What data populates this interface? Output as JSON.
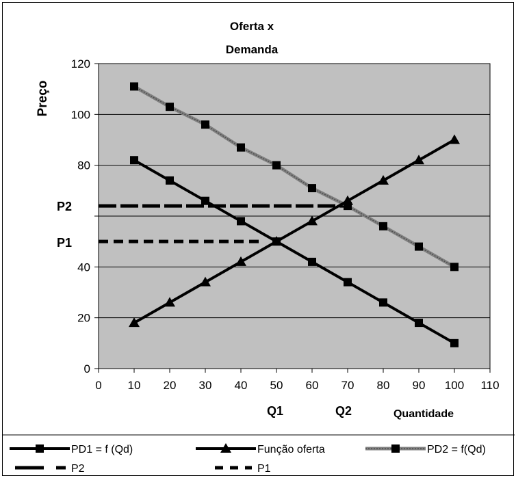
{
  "chart_data": {
    "type": "line",
    "title_lines": [
      "Oferta x",
      "Demanda"
    ],
    "xlabel": "Quantidade",
    "ylabel": "Preço",
    "xlim": [
      0,
      110
    ],
    "ylim": [
      0,
      120
    ],
    "x_ticks": [
      "0",
      "10",
      "20",
      "30",
      "40",
      "50",
      "60",
      "70",
      "80",
      "90",
      "100",
      "110"
    ],
    "y_ticks": [
      {
        "value": 0,
        "label": "0"
      },
      {
        "value": 20,
        "label": "20"
      },
      {
        "value": 40,
        "label": "40"
      },
      {
        "value": 80,
        "label": "80"
      },
      {
        "value": 100,
        "label": "100"
      },
      {
        "value": 120,
        "label": "120"
      }
    ],
    "gridlines_y": [
      0,
      20,
      40,
      60,
      80,
      100,
      120
    ],
    "plot_background": "#c0c0c0",
    "series": [
      {
        "name": "PD1 = f (Qd)",
        "marker": "square",
        "style": "solid",
        "color": "#000000",
        "x": [
          10,
          20,
          30,
          40,
          50,
          60,
          70,
          80,
          90,
          100
        ],
        "y": [
          82,
          74,
          66,
          58,
          50,
          42,
          34,
          26,
          18,
          10
        ]
      },
      {
        "name": "Função oferta",
        "marker": "triangle",
        "style": "solid",
        "color": "#000000",
        "x": [
          10,
          20,
          30,
          40,
          50,
          60,
          70,
          80,
          90,
          100
        ],
        "y": [
          18,
          26,
          34,
          42,
          50,
          58,
          66,
          74,
          82,
          90
        ]
      },
      {
        "name": "PD2 = f(Qd)",
        "marker": "square",
        "style": "solid-gray",
        "color": "#808080",
        "x": [
          10,
          20,
          30,
          40,
          50,
          60,
          70,
          80,
          90,
          100
        ],
        "y": [
          111,
          103,
          96,
          87,
          80,
          71,
          64,
          56,
          48,
          40
        ]
      },
      {
        "name": "P2",
        "marker": "none",
        "style": "long-dash",
        "color": "#000000",
        "x": [
          0,
          70
        ],
        "y": [
          64,
          64
        ]
      },
      {
        "name": "P1",
        "marker": "none",
        "style": "short-dash",
        "color": "#000000",
        "x": [
          0,
          45
        ],
        "y": [
          50,
          50
        ]
      }
    ],
    "annotations": [
      {
        "text": "P2",
        "near_y": 64
      },
      {
        "text": "P1",
        "near_y": 50
      },
      {
        "text": "Q1",
        "near_x": 48
      },
      {
        "text": "Q2",
        "near_x": 70
      }
    ],
    "legend_position": "bottom"
  }
}
